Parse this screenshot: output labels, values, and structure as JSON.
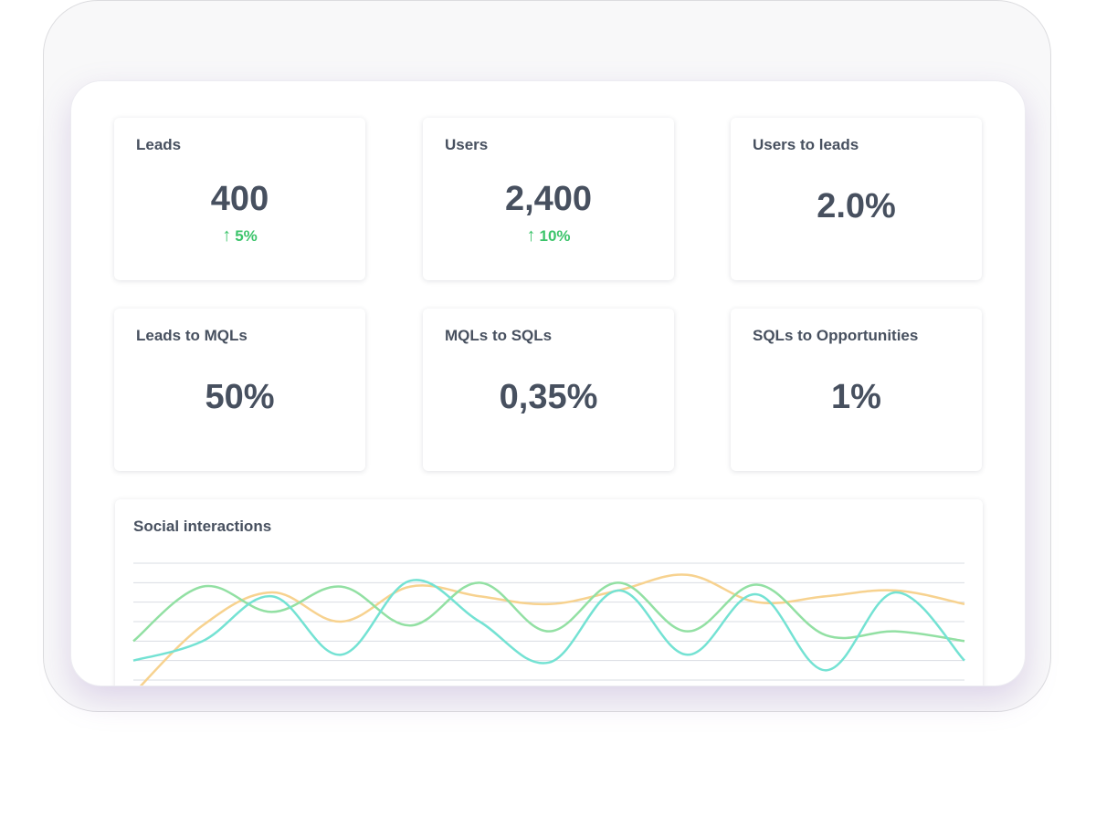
{
  "cards": [
    {
      "title": "Leads",
      "value": "400",
      "delta": "5%",
      "delta_color": "#3cc46b"
    },
    {
      "title": "Users",
      "value": "2,400",
      "delta": "10%",
      "delta_color": "#3cc46b"
    },
    {
      "title": "Users to leads",
      "value": "2.0%"
    },
    {
      "title": "Leads to MQLs",
      "value": "50%"
    },
    {
      "title": "MQLs to SQLs",
      "value": "0,35%"
    },
    {
      "title": "SQLs to Opportunities",
      "value": "1%"
    }
  ],
  "chart_data": {
    "type": "line",
    "title": "Social interactions",
    "xlabel": "",
    "ylabel": "",
    "ylim": [
      0,
      6
    ],
    "x": [
      0,
      1,
      2,
      3,
      4,
      5,
      6,
      7,
      8,
      9,
      10,
      11,
      12
    ],
    "series": [
      {
        "name": "orange",
        "color": "#f7d28f",
        "values": [
          -0.7,
          2.8,
          4.5,
          3.0,
          4.8,
          4.3,
          3.9,
          4.6,
          5.4,
          4.0,
          4.3,
          4.6,
          3.9
        ]
      },
      {
        "name": "green",
        "color": "#92e0a3",
        "values": [
          2.0,
          4.8,
          3.5,
          4.8,
          2.8,
          5.0,
          2.5,
          5.0,
          2.5,
          4.9,
          2.3,
          2.5,
          2.0
        ]
      },
      {
        "name": "teal",
        "color": "#74e2d3",
        "values": [
          1.0,
          2.0,
          4.3,
          1.3,
          5.1,
          3.0,
          0.9,
          4.6,
          1.3,
          4.4,
          0.5,
          4.5,
          1.0
        ]
      }
    ]
  }
}
